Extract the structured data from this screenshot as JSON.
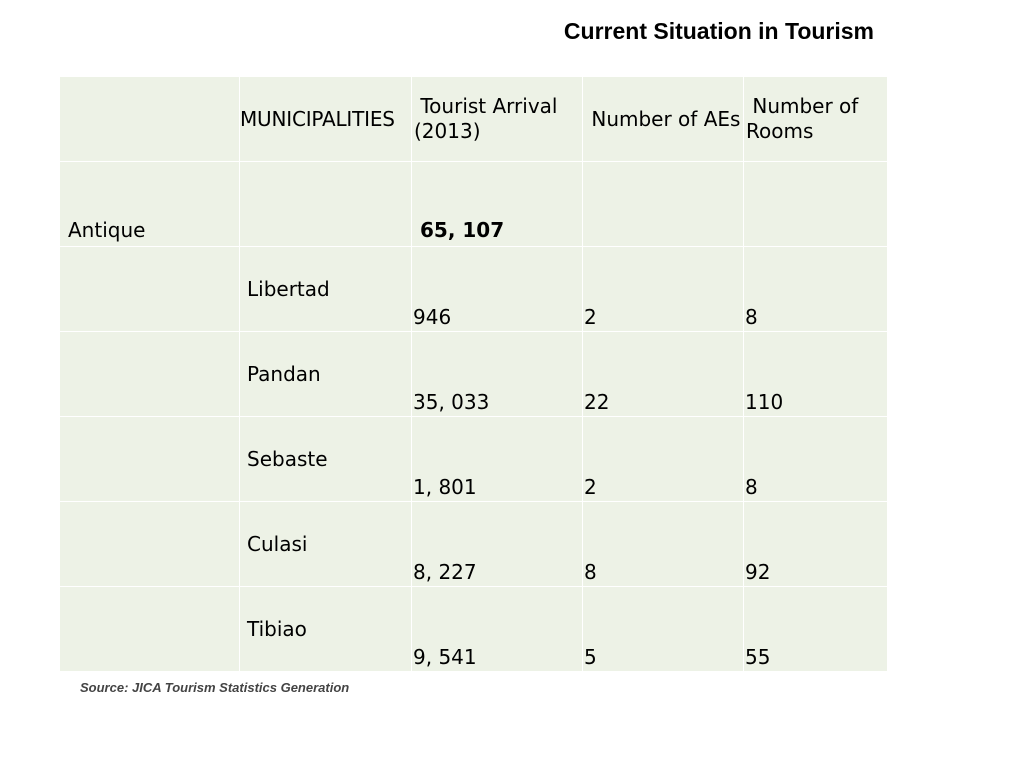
{
  "title": "Current Situation in Tourism",
  "table": {
    "headers": [
      "",
      "MUNICIPALITIES",
      " Tourist Arrival (2013)",
      " Number of AEs",
      " Number of Rooms"
    ],
    "region": "Antique",
    "region_total": "65, 107",
    "rows": [
      {
        "municipality": "Libertad",
        "arrival": "946",
        "aes": "2",
        "rooms": "8"
      },
      {
        "municipality": "Pandan",
        "arrival": "35, 033",
        "aes": "22",
        "rooms": "110"
      },
      {
        "municipality": "Sebaste",
        "arrival": "1, 801",
        "aes": "2",
        "rooms": "8"
      },
      {
        "municipality": "Culasi",
        "arrival": "8, 227",
        "aes": "8",
        "rooms": "92"
      },
      {
        "municipality": "Tibiao",
        "arrival": "9, 541",
        "aes": "5",
        "rooms": "55"
      }
    ]
  },
  "source": "Source: JICA Tourism Statistics Generation",
  "colors": {
    "cell_background": "#edf2e6",
    "grid_lines": "#ffffff",
    "source_text": "#444444"
  }
}
